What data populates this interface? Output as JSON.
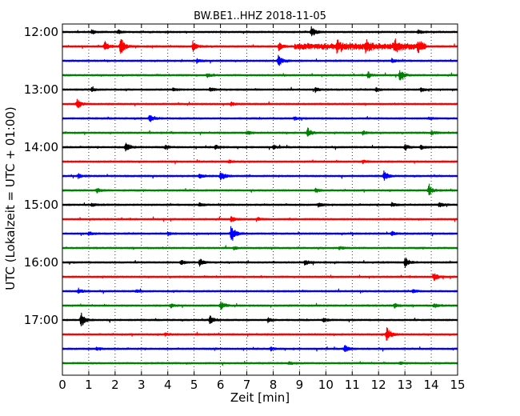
{
  "chart_data": {
    "type": "line",
    "title": "BW.BE1..HHZ 2018-11-05",
    "xlabel": "Zeit  [min]",
    "ylabel": "UTC (Lokalzeit = UTC + 01:00)",
    "xlim": [
      0,
      15
    ],
    "xticks": [
      "0",
      "1",
      "2",
      "3",
      "4",
      "5",
      "6",
      "7",
      "8",
      "9",
      "10",
      "11",
      "12",
      "13",
      "14",
      "15"
    ],
    "yticks": [
      "12:00",
      "13:00",
      "14:00",
      "15:00",
      "16:00",
      "17:00"
    ],
    "grid": "vertical dotted lines at each minute",
    "trace_colors": [
      "#000000",
      "#ff0000",
      "#0000ff",
      "#008000"
    ],
    "traces": [
      {
        "start": "12:00",
        "color": "#000000",
        "events": [
          [
            9.45,
            0.55
          ],
          [
            2.1,
            0.2
          ],
          [
            1.1,
            0.2
          ],
          [
            13.5,
            0.2
          ]
        ]
      },
      {
        "start": "12:15",
        "color": "#ff0000",
        "events": [
          [
            2.2,
            1.0
          ],
          [
            1.6,
            0.6
          ],
          [
            4.95,
            0.5
          ],
          [
            8.2,
            0.4
          ],
          [
            10.4,
            0.5
          ],
          [
            11.5,
            0.5
          ],
          [
            12.6,
            0.6
          ],
          [
            13.5,
            0.4
          ]
        ],
        "coda": [
          [
            8.8,
            13.8,
            0.4
          ]
        ]
      },
      {
        "start": "12:30",
        "color": "#0000ff",
        "events": [
          [
            8.2,
            0.6
          ],
          [
            5.1,
            0.2
          ],
          [
            12.5,
            0.2
          ]
        ]
      },
      {
        "start": "12:45",
        "color": "#008000",
        "events": [
          [
            12.8,
            0.6
          ],
          [
            11.6,
            0.3
          ],
          [
            5.5,
            0.2
          ]
        ]
      },
      {
        "start": "13:00",
        "color": "#000000",
        "events": [
          [
            1.1,
            0.2
          ],
          [
            4.2,
            0.2
          ],
          [
            5.6,
            0.2
          ],
          [
            9.6,
            0.2
          ],
          [
            11.9,
            0.2
          ],
          [
            13.6,
            0.2
          ]
        ]
      },
      {
        "start": "13:15",
        "color": "#ff0000",
        "events": [
          [
            0.55,
            0.5
          ],
          [
            6.4,
            0.2
          ]
        ]
      },
      {
        "start": "13:30",
        "color": "#0000ff",
        "events": [
          [
            3.3,
            0.4
          ],
          [
            8.8,
            0.15
          ],
          [
            13.9,
            0.15
          ]
        ]
      },
      {
        "start": "13:45",
        "color": "#008000",
        "events": [
          [
            9.3,
            0.5
          ],
          [
            7.0,
            0.2
          ],
          [
            11.4,
            0.2
          ],
          [
            14.0,
            0.2
          ]
        ]
      },
      {
        "start": "14:00",
        "color": "#000000",
        "events": [
          [
            2.4,
            0.55
          ],
          [
            3.9,
            0.15
          ],
          [
            5.8,
            0.2
          ],
          [
            8.0,
            0.2
          ],
          [
            13.0,
            0.25
          ],
          [
            13.6,
            0.2
          ]
        ]
      },
      {
        "start": "14:15",
        "color": "#ff0000",
        "events": [
          [
            6.3,
            0.15
          ],
          [
            11.4,
            0.15
          ]
        ]
      },
      {
        "start": "14:30",
        "color": "#0000ff",
        "events": [
          [
            6.0,
            0.55
          ],
          [
            12.2,
            0.45
          ],
          [
            0.6,
            0.2
          ],
          [
            5.2,
            0.2
          ]
        ]
      },
      {
        "start": "14:45",
        "color": "#008000",
        "events": [
          [
            13.9,
            0.5
          ],
          [
            1.3,
            0.25
          ],
          [
            9.6,
            0.2
          ]
        ]
      },
      {
        "start": "15:00",
        "color": "#000000",
        "events": [
          [
            1.1,
            0.2
          ],
          [
            5.2,
            0.2
          ],
          [
            9.7,
            0.2
          ],
          [
            12.5,
            0.2
          ],
          [
            14.3,
            0.2
          ]
        ]
      },
      {
        "start": "15:15",
        "color": "#ff0000",
        "events": [
          [
            6.4,
            0.3
          ],
          [
            7.4,
            0.15
          ]
        ]
      },
      {
        "start": "15:30",
        "color": "#0000ff",
        "events": [
          [
            6.4,
            1.0
          ],
          [
            1.0,
            0.2
          ],
          [
            4.0,
            0.2
          ],
          [
            12.5,
            0.2
          ]
        ]
      },
      {
        "start": "15:45",
        "color": "#008000",
        "events": [
          [
            6.5,
            0.15
          ],
          [
            10.5,
            0.15
          ]
        ]
      },
      {
        "start": "16:00",
        "color": "#000000",
        "events": [
          [
            13.0,
            0.55
          ],
          [
            5.2,
            0.4
          ],
          [
            4.5,
            0.25
          ],
          [
            9.2,
            0.3
          ]
        ]
      },
      {
        "start": "16:15",
        "color": "#ff0000",
        "events": [
          [
            14.1,
            0.45
          ]
        ]
      },
      {
        "start": "16:30",
        "color": "#0000ff",
        "events": [
          [
            0.6,
            0.3
          ],
          [
            2.8,
            0.15
          ],
          [
            13.3,
            0.15
          ]
        ]
      },
      {
        "start": "16:45",
        "color": "#008000",
        "events": [
          [
            6.0,
            0.4
          ],
          [
            4.1,
            0.2
          ],
          [
            12.6,
            0.2
          ],
          [
            14.1,
            0.2
          ]
        ]
      },
      {
        "start": "17:00",
        "color": "#000000",
        "events": [
          [
            0.7,
            0.75
          ],
          [
            5.6,
            0.5
          ],
          [
            7.8,
            0.2
          ],
          [
            9.9,
            0.2
          ]
        ]
      },
      {
        "start": "17:15",
        "color": "#ff0000",
        "events": [
          [
            12.3,
            0.75
          ],
          [
            3.9,
            0.15
          ]
        ]
      },
      {
        "start": "17:30",
        "color": "#0000ff",
        "events": [
          [
            10.7,
            0.4
          ],
          [
            1.3,
            0.15
          ],
          [
            7.9,
            0.15
          ]
        ]
      },
      {
        "start": "17:45",
        "color": "#008000",
        "events": [
          [
            8.6,
            0.1
          ],
          [
            12.8,
            0.1
          ]
        ]
      }
    ]
  }
}
